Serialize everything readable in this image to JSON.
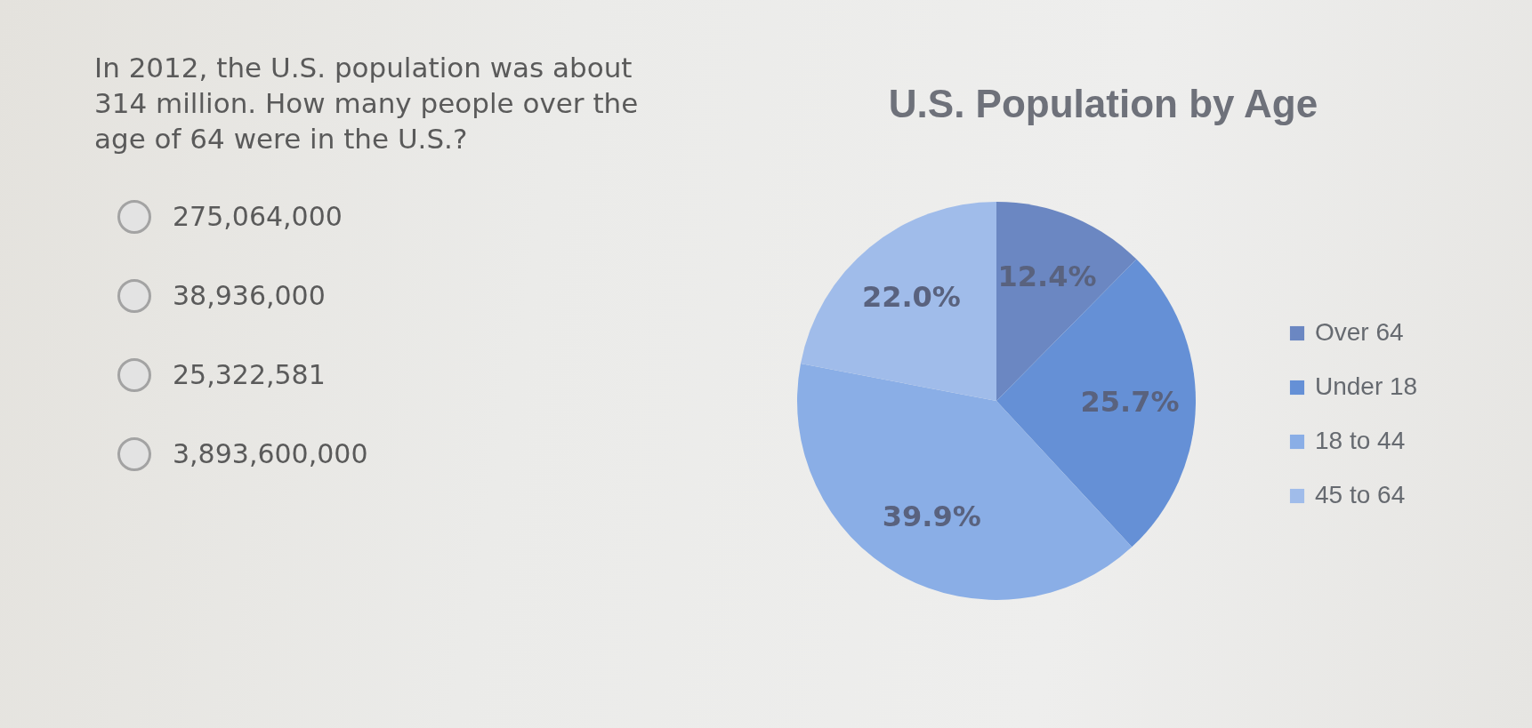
{
  "chart_data": {
    "type": "pie",
    "title": "U.S. Population by Age",
    "annotations": [
      "In 2012, the U.S. population was about 314 million. How many people over the age of 64 were in the U.S.?",
      "275,064,000",
      "38,936,000",
      "25,322,581",
      "3,893,600,000"
    ],
    "categories": [
      "Over 64",
      "Under 18",
      "18 to 44",
      "45 to 64"
    ],
    "values": [
      12.4,
      25.7,
      39.9,
      22.0
    ],
    "value_labels": [
      "12.4%",
      "25.7%",
      "39.9%",
      "22.0%"
    ],
    "colors": [
      "#6b87c2",
      "#6590d6",
      "#8aaee6",
      "#a0bcea"
    ],
    "legend": "right"
  }
}
